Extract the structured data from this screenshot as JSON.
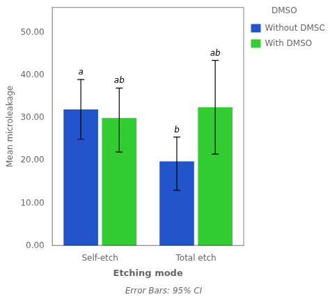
{
  "chart_data": {
    "type": "bar",
    "categories": [
      "Self-etch",
      "Total etch"
    ],
    "series": [
      {
        "name": "Without DMSO",
        "color": "#2255CC",
        "values": [
          32.0,
          19.8
        ],
        "ci_lower": [
          25.0,
          13.0
        ],
        "ci_upper": [
          39.0,
          25.5
        ],
        "annotations": [
          "a",
          "b"
        ]
      },
      {
        "name": "With DMSO",
        "color": "#33CC33",
        "values": [
          30.0,
          32.5
        ],
        "ci_lower": [
          22.0,
          21.5
        ],
        "ci_upper": [
          37.0,
          43.5
        ],
        "annotations": [
          "ab",
          "ab"
        ]
      }
    ],
    "xlabel": "Etching mode",
    "ylabel": "Mean microleakage",
    "ylim": [
      0,
      56
    ],
    "yticks": [
      {
        "value": 0,
        "label": "0.00"
      },
      {
        "value": 10,
        "label": "10.00"
      },
      {
        "value": 20,
        "label": "20.00"
      },
      {
        "value": 30,
        "label": "30.00"
      },
      {
        "value": 40,
        "label": "40.00"
      },
      {
        "value": 50,
        "label": "50.00"
      }
    ],
    "legend_title": "DMSO",
    "legend": "right",
    "footer": "Error Bars: 95% CI",
    "grid": false
  }
}
